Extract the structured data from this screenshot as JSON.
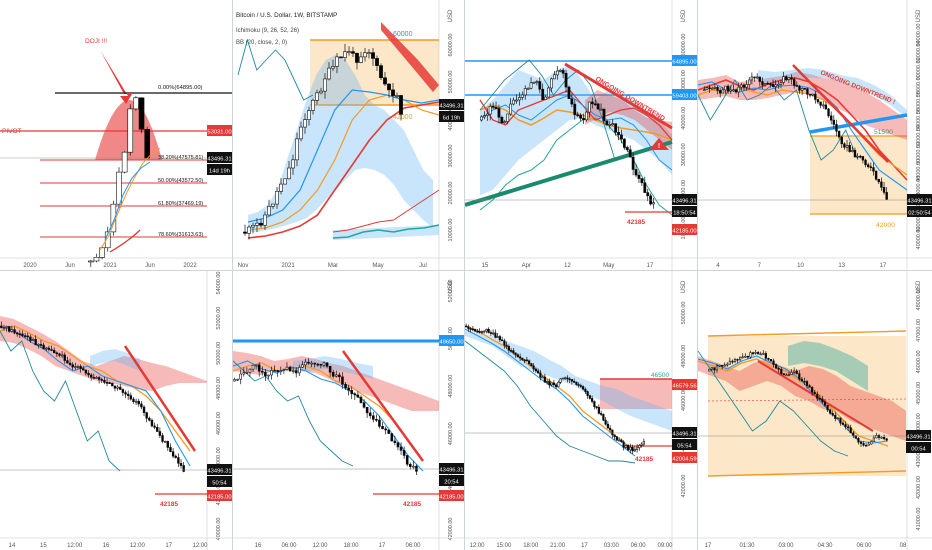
{
  "colors": {
    "up": "#ffffff",
    "down": "#000000",
    "red": "#e53935",
    "orange": "#f59a23",
    "blue": "#2196f3",
    "teal": "#26a69a",
    "cyan": "#21899a",
    "cloudRed": "rgba(229,57,53,0.35)",
    "cloudBlue": "rgba(100,181,246,0.35)",
    "zone": "rgba(246,170,60,0.28)",
    "green": "#1a8a6e"
  },
  "chart_data": [
    {
      "type": "candlestick",
      "id": "p1",
      "y_labels": [],
      "x_ticks": [
        "2020",
        "Jun",
        "2021",
        "Jun",
        "2022"
      ],
      "annotations": {
        "doji": "DOJI !!!",
        "pivot": "PIVOT",
        "fib0": "0.00%(64895.00)"
      },
      "fib_levels": [
        {
          "text": "38.20%(47575.81)"
        },
        {
          "text": "50.00%(43572.50)"
        },
        {
          "text": "61.80%(37469.19)"
        },
        {
          "text": "78.60%(31613.63)"
        }
      ],
      "price_labels": [
        {
          "text": "53031.00",
          "color": "red"
        },
        {
          "text": "43496.31",
          "color": "black"
        },
        {
          "text": "14d 19h",
          "color": "black"
        }
      ]
    },
    {
      "type": "candlestick",
      "id": "p2",
      "header": {
        "title": "Bitcoin / U.S. Dollar, 1W, BITSTAMP",
        "ind1": "Ichimoku (9, 26, 52, 26)",
        "ind2": "BB (20, close, 2, 0)"
      },
      "currency": "USD",
      "y_labels": [
        "60000.00",
        "50000.00",
        "40000.00",
        "30000.00",
        "20000.00",
        "10000.00"
      ],
      "x_ticks": [
        "Nov",
        "2021",
        "Mar",
        "May",
        "Jul"
      ],
      "levels": [
        {
          "text": "60000"
        },
        {
          "text": "42000"
        }
      ],
      "price_labels": [
        {
          "text": "43496.31"
        },
        {
          "text": "6d 19h"
        }
      ]
    },
    {
      "type": "candlestick",
      "id": "p3",
      "currency": "USD",
      "y_labels": [
        "60000.00",
        "50000.00",
        "40000.00",
        "30000.00",
        "20000.00",
        "10000.00"
      ],
      "x_ticks": [
        "15",
        "Apr",
        "12",
        "May",
        "17"
      ],
      "annotation": "ONGOING DOWNTREND",
      "level_text": "42185",
      "price_labels": [
        {
          "text": "64895.00",
          "color": "blue"
        },
        {
          "text": "59403.00",
          "color": "blue"
        },
        {
          "text": "43496.31",
          "color": "black"
        },
        {
          "text": "18:50:54",
          "color": "black"
        },
        {
          "text": "42185.00",
          "color": "red"
        }
      ]
    },
    {
      "type": "candlestick",
      "id": "p4",
      "currency": "USD",
      "y_labels": [
        "64000.00",
        "62000.00",
        "60000.00",
        "58000.00",
        "56000.00",
        "54000.00",
        "52000.00",
        "50000.00",
        "48000.00",
        "46000.00",
        "44000.00",
        "42000.00",
        "40000.00"
      ],
      "x_ticks": [
        "4",
        "7",
        "10",
        "13",
        "17"
      ],
      "annotation": "ONGOING DOWNTREND !",
      "levels": [
        {
          "text": "51500"
        },
        {
          "text": "42000"
        }
      ],
      "price_labels": [
        {
          "text": "43496.31"
        },
        {
          "text": "02:50:54"
        }
      ]
    },
    {
      "type": "candlestick",
      "id": "p5",
      "y_labels": [
        "54000.00",
        "52000.00",
        "50000.00",
        "48000.00",
        "46000.00",
        "44000.00",
        "42000.00",
        "40000.00"
      ],
      "x_ticks": [
        "14",
        "15",
        "12:00",
        "16",
        "12:00",
        "17",
        "12:00"
      ],
      "level_text": "42185",
      "price_labels": [
        {
          "text": "43496.31",
          "color": "black"
        },
        {
          "text": "50:54",
          "color": "black"
        },
        {
          "text": "42185.00",
          "color": "red"
        }
      ]
    },
    {
      "type": "candlestick",
      "id": "p6",
      "currency": "USD",
      "y_labels": [
        "52000.00",
        "50000.00",
        "48000.00",
        "46000.00",
        "44000.00",
        "42000.00"
      ],
      "x_ticks": [
        "16",
        "06:00",
        "12:00",
        "18:00",
        "17",
        "06:00"
      ],
      "level_text": "42185",
      "price_labels": [
        {
          "text": "49650.00",
          "color": "blue"
        },
        {
          "text": "43496.31",
          "color": "black"
        },
        {
          "text": "20:54",
          "color": "black"
        },
        {
          "text": "42185.00",
          "color": "red"
        }
      ]
    },
    {
      "type": "candlestick",
      "id": "p7",
      "currency": "USD",
      "y_labels": [
        "50000.00",
        "48000.00",
        "46000.00",
        "44000.00",
        "42000.00"
      ],
      "x_ticks": [
        "12:00",
        "15:00",
        "18:00",
        "21:00",
        "17",
        "03:00",
        "06:00",
        "09:00"
      ],
      "levels": [
        {
          "text": "46500"
        },
        {
          "text": "42185"
        }
      ],
      "price_labels": [
        {
          "text": "46579.56",
          "color": "red"
        },
        {
          "text": "43496.31",
          "color": "black"
        },
        {
          "text": "05:54",
          "color": "black"
        },
        {
          "text": "42004.59",
          "color": "red"
        }
      ]
    },
    {
      "type": "candlestick",
      "id": "p8",
      "currency": "USD",
      "y_labels": [
        "48000.00",
        "47000.00",
        "46000.00",
        "45000.00",
        "44000.00",
        "43000.00",
        "42000.00",
        "41000.00"
      ],
      "x_ticks": [
        "17",
        "01:30",
        "03:00",
        "04:30",
        "06:00",
        "08"
      ],
      "price_labels": [
        {
          "text": "43496.31"
        },
        {
          "text": "00:54"
        }
      ]
    }
  ]
}
